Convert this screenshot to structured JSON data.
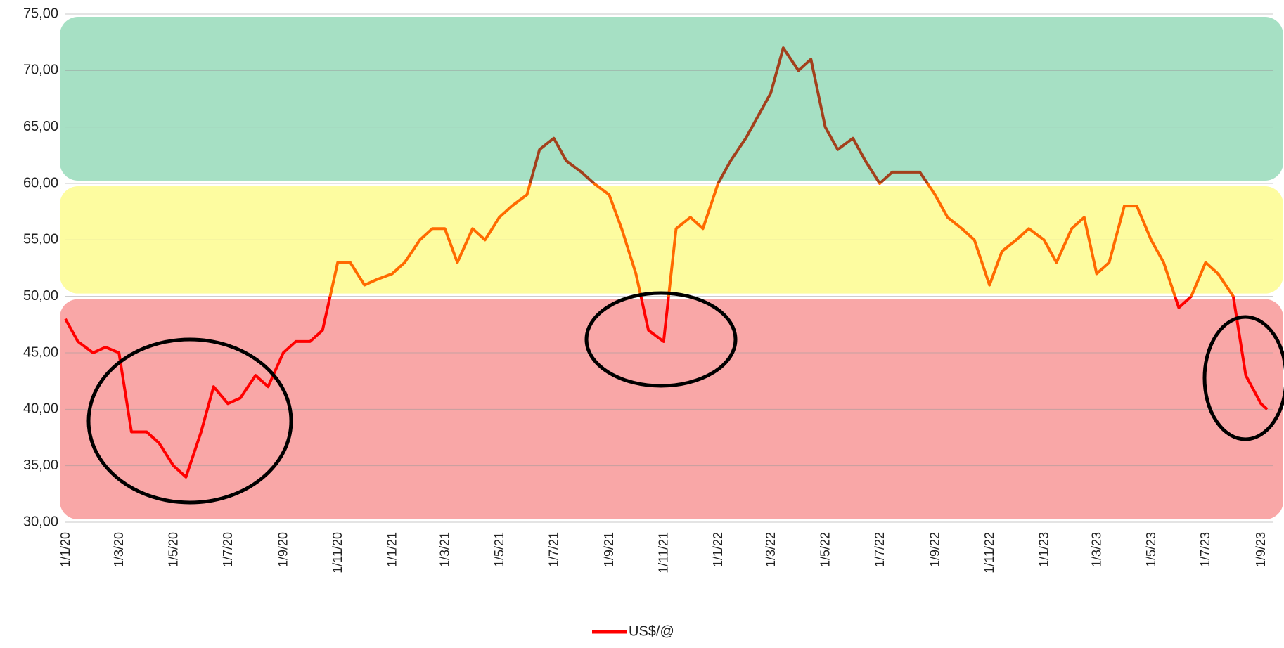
{
  "chart_data": {
    "type": "line",
    "x": [
      "1/1/20",
      "15/1/20",
      "1/2/20",
      "15/2/20",
      "1/3/20",
      "15/3/20",
      "1/4/20",
      "15/4/20",
      "1/5/20",
      "15/5/20",
      "1/6/20",
      "15/6/20",
      "1/7/20",
      "15/7/20",
      "1/8/20",
      "15/8/20",
      "1/9/20",
      "15/9/20",
      "1/10/20",
      "15/10/20",
      "1/11/20",
      "15/11/20",
      "1/12/20",
      "15/12/20",
      "1/1/21",
      "15/1/21",
      "1/2/21",
      "15/2/21",
      "1/3/21",
      "15/3/21",
      "1/4/21",
      "15/4/21",
      "1/5/21",
      "15/5/21",
      "1/6/21",
      "15/6/21",
      "1/7/21",
      "15/7/21",
      "1/8/21",
      "15/8/21",
      "1/9/21",
      "15/9/21",
      "1/10/21",
      "15/10/21",
      "1/11/21",
      "15/11/21",
      "1/12/21",
      "15/12/21",
      "1/1/22",
      "15/1/22",
      "1/2/22",
      "15/2/22",
      "1/3/22",
      "15/3/22",
      "1/4/22",
      "15/4/22",
      "1/5/22",
      "15/5/22",
      "1/6/22",
      "15/6/22",
      "1/7/22",
      "15/7/22",
      "1/8/22",
      "15/8/22",
      "1/9/22",
      "15/9/22",
      "1/10/22",
      "15/10/22",
      "1/11/22",
      "15/11/22",
      "1/12/22",
      "15/12/22",
      "1/1/23",
      "15/1/23",
      "1/2/23",
      "15/2/23",
      "1/3/23",
      "15/3/23",
      "1/4/23",
      "15/4/23",
      "1/5/23",
      "15/5/23",
      "1/6/23",
      "15/6/23",
      "1/7/23",
      "15/7/23",
      "1/8/23",
      "15/8/23",
      "1/9/23",
      "8/9/23"
    ],
    "series": [
      {
        "name": "US$/@",
        "color": "#ff0000",
        "values": [
          48,
          46,
          45,
          45.5,
          45,
          38,
          38,
          37,
          35,
          34,
          38,
          42,
          40.5,
          41,
          43,
          42,
          45,
          46,
          46,
          47,
          53,
          53,
          51,
          51.5,
          52,
          53,
          55,
          56,
          56,
          53,
          56,
          55,
          57,
          58,
          59,
          63,
          64,
          62,
          61,
          60,
          59,
          56,
          52,
          47,
          46,
          56,
          57,
          56,
          60,
          62,
          64,
          66,
          68,
          72,
          70,
          71,
          65,
          63,
          64,
          62,
          60,
          61,
          61,
          61,
          59,
          57,
          56,
          55,
          51,
          54,
          55,
          56,
          55,
          53,
          56,
          57,
          52,
          53,
          58,
          58,
          55,
          53,
          49,
          50,
          53,
          52,
          50,
          43,
          40.5,
          40
        ]
      }
    ],
    "line_bands": [
      {
        "from": 30,
        "to": 50,
        "color": "#ff0000"
      },
      {
        "from": 50,
        "to": 60,
        "color": "#ff6a00"
      },
      {
        "from": 60,
        "to": 75,
        "color": "#a3401c"
      }
    ],
    "zones": [
      {
        "from": 30,
        "to": 50,
        "color": "#f9a7a7"
      },
      {
        "from": 50,
        "to": 60,
        "color": "#fdfca0"
      },
      {
        "from": 60,
        "to": 75,
        "color": "#a6e0c4"
      }
    ],
    "xlim": [
      "1/1/20",
      "15/9/23"
    ],
    "xticks": [
      "1/1/20",
      "1/3/20",
      "1/5/20",
      "1/7/20",
      "1/9/20",
      "1/11/20",
      "1/1/21",
      "1/3/21",
      "1/5/21",
      "1/7/21",
      "1/9/21",
      "1/11/21",
      "1/1/22",
      "1/3/22",
      "1/5/22",
      "1/7/22",
      "1/9/22",
      "1/11/22",
      "1/1/23",
      "1/3/23",
      "1/5/23",
      "1/7/23",
      "1/9/23"
    ],
    "ylim": [
      30,
      75
    ],
    "yticks": [
      {
        "value": 30,
        "label": "30,00"
      },
      {
        "value": 35,
        "label": "35,00"
      },
      {
        "value": 40,
        "label": "40,00"
      },
      {
        "value": 45,
        "label": "45,00"
      },
      {
        "value": 50,
        "label": "50,00"
      },
      {
        "value": 55,
        "label": "55,00"
      },
      {
        "value": 60,
        "label": "60,00"
      },
      {
        "value": 65,
        "label": "65,00"
      },
      {
        "value": 70,
        "label": "70,00"
      },
      {
        "value": 75,
        "label": "75,00"
      }
    ],
    "grid": true,
    "legend": "bottom"
  }
}
